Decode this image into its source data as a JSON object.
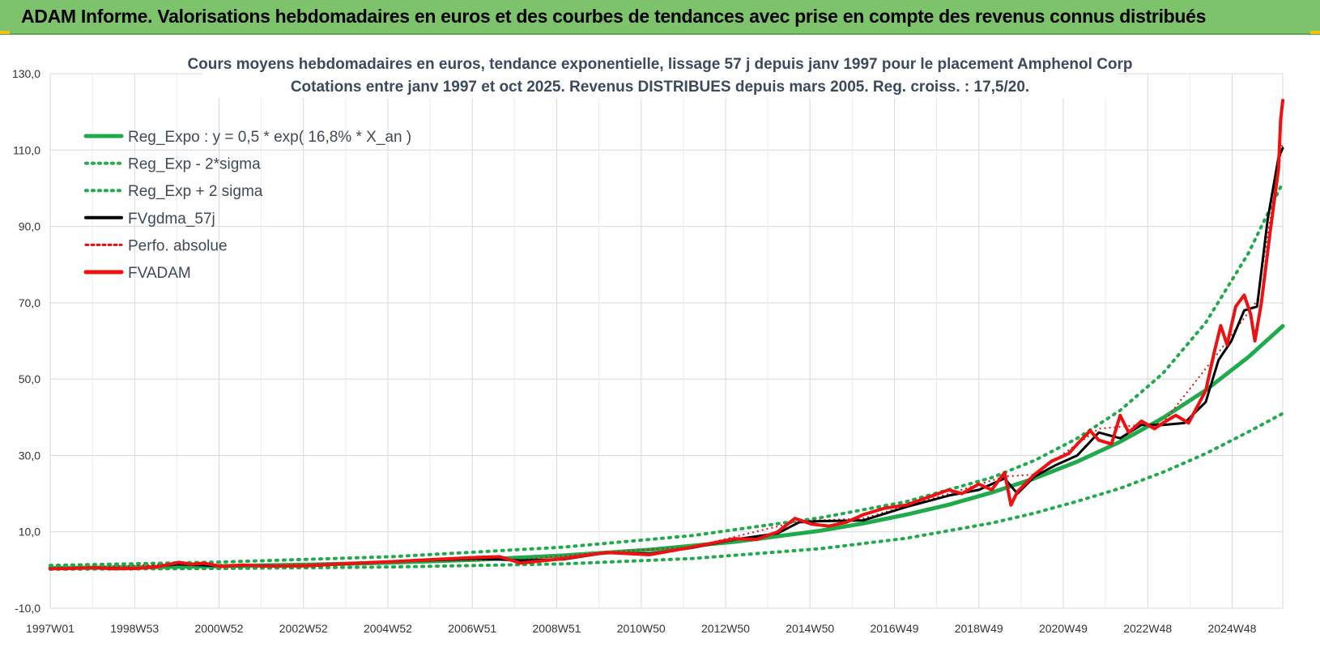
{
  "banner": {
    "title": "ADAM Informe. Valorisations hebdomadaires en euros et des courbes de tendances avec prise en compte des revenus connus distribués"
  },
  "colors": {
    "banner_bg": "#7dc36b",
    "reg_expo": "#1faa4b",
    "reg_sigma": "#1faa4b",
    "fvgdma": "#000000",
    "perfo": "#e01010",
    "fvadam": "#ee1111",
    "grid": "#d9d9d9"
  },
  "chart_data": {
    "type": "line",
    "title_line1": "Cours moyens hebdomadaires en euros, tendance exponentielle, lissage 57 j depuis janv 1997 pour le placement Amphenol Corp",
    "title_line2": "Cotations entre janv 1997 et oct 2025. Revenus DISTRIBUES depuis mars 2005. Reg. croiss. : 17,5/20.",
    "ylim": [
      -10,
      130
    ],
    "ytick_labels": [
      "130,0",
      "110,0",
      "90,0",
      "70,0",
      "50,0",
      "30,0",
      "10,0",
      "-10,0"
    ],
    "x_range": [
      1997.0,
      2025.8
    ],
    "xtick_labels": [
      "1997W01",
      "1998W53",
      "2000W52",
      "2002W52",
      "2004W52",
      "2006W51",
      "2008W51",
      "2010W50",
      "2012W50",
      "2014W50",
      "2016W49",
      "2018W49",
      "2020W49",
      "2022W48",
      "2024W48"
    ],
    "grid": true,
    "legend_position": "top-left",
    "legend": [
      {
        "label": "Reg_Expo : y = 0,5 * exp( 16,8% *  X_an )",
        "style": "solid-thick-green"
      },
      {
        "label": "Reg_Exp - 2*sigma",
        "style": "dotted-green"
      },
      {
        "label": "Reg_Exp + 2 sigma",
        "style": "dotted-green"
      },
      {
        "label": "FVgdma_57j",
        "style": "solid-black"
      },
      {
        "label": "Perfo. absolue",
        "style": "dotted-red"
      },
      {
        "label": "FVADAM",
        "style": "solid-thick-red"
      }
    ],
    "series": [
      {
        "name": "Reg_Expo : y = 0,5 * exp( 16,8% *  X_an )",
        "points": [
          [
            1997.0,
            0.5
          ],
          [
            2000.0,
            0.83
          ],
          [
            2003.0,
            1.4
          ],
          [
            2005.0,
            1.95
          ],
          [
            2007.0,
            2.7
          ],
          [
            2009.0,
            3.8
          ],
          [
            2011.0,
            5.3
          ],
          [
            2013.0,
            7.4
          ],
          [
            2015.0,
            10.3
          ],
          [
            2016.0,
            12.2
          ],
          [
            2017.0,
            14.5
          ],
          [
            2018.0,
            17.1
          ],
          [
            2019.0,
            20.3
          ],
          [
            2020.0,
            24.0
          ],
          [
            2021.0,
            28.4
          ],
          [
            2022.0,
            33.6
          ],
          [
            2023.0,
            39.8
          ],
          [
            2024.0,
            47.1
          ],
          [
            2025.0,
            55.8
          ],
          [
            2025.8,
            63.9
          ]
        ]
      },
      {
        "name": "Reg_Exp - 2*sigma",
        "points": [
          [
            1997.0,
            0.2
          ],
          [
            2001.0,
            0.4
          ],
          [
            2005.0,
            0.8
          ],
          [
            2009.0,
            1.6
          ],
          [
            2012.0,
            3.0
          ],
          [
            2015.0,
            5.6
          ],
          [
            2017.0,
            8.3
          ],
          [
            2019.0,
            12.3
          ],
          [
            2020.0,
            14.9
          ],
          [
            2021.0,
            18.0
          ],
          [
            2022.0,
            21.4
          ],
          [
            2023.0,
            25.6
          ],
          [
            2024.0,
            30.5
          ],
          [
            2025.0,
            36.2
          ],
          [
            2025.8,
            41.0
          ]
        ]
      },
      {
        "name": "Reg_Exp + 2 sigma",
        "points": [
          [
            1997.0,
            1.2
          ],
          [
            2001.0,
            2.1
          ],
          [
            2005.0,
            3.5
          ],
          [
            2009.0,
            6.0
          ],
          [
            2012.0,
            9.0
          ],
          [
            2015.0,
            13.7
          ],
          [
            2017.0,
            17.9
          ],
          [
            2019.0,
            24.2
          ],
          [
            2020.0,
            28.7
          ],
          [
            2021.0,
            34.5
          ],
          [
            2022.0,
            41.8
          ],
          [
            2023.0,
            51.5
          ],
          [
            2024.0,
            64.8
          ],
          [
            2025.0,
            83.0
          ],
          [
            2025.8,
            101.5
          ]
        ]
      },
      {
        "name": "FVgdma_57j",
        "points": [
          [
            1997.0,
            0.3
          ],
          [
            1998.0,
            0.5
          ],
          [
            1999.0,
            0.4
          ],
          [
            2000.0,
            1.5
          ],
          [
            2001.0,
            1.0
          ],
          [
            2002.0,
            1.2
          ],
          [
            2003.0,
            1.0
          ],
          [
            2004.0,
            1.6
          ],
          [
            2005.0,
            2.2
          ],
          [
            2006.0,
            2.6
          ],
          [
            2007.0,
            3.0
          ],
          [
            2008.0,
            2.5
          ],
          [
            2009.0,
            2.8
          ],
          [
            2010.0,
            4.5
          ],
          [
            2011.0,
            4.3
          ],
          [
            2012.0,
            5.8
          ],
          [
            2013.0,
            8.0
          ],
          [
            2014.0,
            9.6
          ],
          [
            2014.5,
            12.5
          ],
          [
            2015.0,
            12.8
          ],
          [
            2016.0,
            13.0
          ],
          [
            2017.0,
            16.5
          ],
          [
            2018.0,
            19.5
          ],
          [
            2018.7,
            21.0
          ],
          [
            2019.3,
            24.0
          ],
          [
            2019.6,
            20.0
          ],
          [
            2020.0,
            24.5
          ],
          [
            2020.5,
            27.5
          ],
          [
            2021.0,
            30.0
          ],
          [
            2021.5,
            36.0
          ],
          [
            2022.0,
            34.5
          ],
          [
            2022.5,
            38.0
          ],
          [
            2023.0,
            38.0
          ],
          [
            2023.5,
            38.5
          ],
          [
            2024.0,
            44.0
          ],
          [
            2024.3,
            55.0
          ],
          [
            2024.6,
            60.0
          ],
          [
            2024.9,
            68.0
          ],
          [
            2025.2,
            69.0
          ],
          [
            2025.45,
            92.0
          ],
          [
            2025.7,
            108.0
          ],
          [
            2025.8,
            110.5
          ]
        ]
      },
      {
        "name": "Perfo. absolue",
        "points": [
          [
            1997.0,
            0.3
          ],
          [
            2000.0,
            1.6
          ],
          [
            2002.0,
            1.2
          ],
          [
            2005.0,
            2.3
          ],
          [
            2008.0,
            2.7
          ],
          [
            2010.0,
            4.7
          ],
          [
            2012.0,
            6.0
          ],
          [
            2014.5,
            12.8
          ],
          [
            2016.0,
            13.5
          ],
          [
            2018.0,
            20.0
          ],
          [
            2019.3,
            24.5
          ],
          [
            2020.0,
            25.0
          ],
          [
            2021.5,
            37.0
          ],
          [
            2023.0,
            38.5
          ],
          [
            2024.3,
            57.0
          ],
          [
            2025.2,
            70.5
          ],
          [
            2025.8,
            112.0
          ]
        ]
      },
      {
        "name": "FVADAM",
        "points": [
          [
            1997.0,
            0.3
          ],
          [
            1997.5,
            0.4
          ],
          [
            1998.0,
            0.6
          ],
          [
            1998.5,
            0.3
          ],
          [
            1999.0,
            0.4
          ],
          [
            1999.5,
            0.8
          ],
          [
            2000.0,
            2.0
          ],
          [
            2000.3,
            1.5
          ],
          [
            2000.6,
            1.8
          ],
          [
            2001.0,
            0.9
          ],
          [
            2001.5,
            1.3
          ],
          [
            2002.0,
            1.0
          ],
          [
            2003.0,
            1.1
          ],
          [
            2004.0,
            1.7
          ],
          [
            2005.0,
            2.2
          ],
          [
            2006.0,
            2.8
          ],
          [
            2007.0,
            3.3
          ],
          [
            2007.5,
            3.5
          ],
          [
            2008.0,
            1.8
          ],
          [
            2008.5,
            2.4
          ],
          [
            2009.0,
            3.0
          ],
          [
            2010.0,
            4.6
          ],
          [
            2011.0,
            4.0
          ],
          [
            2011.5,
            5.0
          ],
          [
            2012.0,
            6.0
          ],
          [
            2013.0,
            8.2
          ],
          [
            2013.5,
            8.0
          ],
          [
            2014.0,
            10.0
          ],
          [
            2014.4,
            13.5
          ],
          [
            2014.8,
            12.0
          ],
          [
            2015.2,
            11.5
          ],
          [
            2015.6,
            12.5
          ],
          [
            2016.0,
            14.5
          ],
          [
            2016.5,
            16.2
          ],
          [
            2017.0,
            17.0
          ],
          [
            2017.5,
            19.0
          ],
          [
            2018.0,
            21.0
          ],
          [
            2018.3,
            20.0
          ],
          [
            2018.7,
            22.5
          ],
          [
            2019.0,
            21.0
          ],
          [
            2019.3,
            25.5
          ],
          [
            2019.45,
            17.0
          ],
          [
            2019.6,
            20.5
          ],
          [
            2020.0,
            25.0
          ],
          [
            2020.4,
            28.5
          ],
          [
            2020.8,
            30.5
          ],
          [
            2021.0,
            33.0
          ],
          [
            2021.3,
            36.5
          ],
          [
            2021.5,
            34.0
          ],
          [
            2021.8,
            33.0
          ],
          [
            2022.0,
            40.5
          ],
          [
            2022.2,
            36.0
          ],
          [
            2022.5,
            39.0
          ],
          [
            2022.8,
            37.0
          ],
          [
            2023.0,
            38.5
          ],
          [
            2023.3,
            40.5
          ],
          [
            2023.6,
            38.5
          ],
          [
            2024.0,
            47.0
          ],
          [
            2024.2,
            57.0
          ],
          [
            2024.35,
            64.0
          ],
          [
            2024.5,
            59.0
          ],
          [
            2024.7,
            69.0
          ],
          [
            2024.9,
            72.0
          ],
          [
            2025.05,
            67.0
          ],
          [
            2025.15,
            60.0
          ],
          [
            2025.3,
            70.0
          ],
          [
            2025.5,
            88.0
          ],
          [
            2025.7,
            105.0
          ],
          [
            2025.75,
            118.0
          ],
          [
            2025.8,
            123.0
          ]
        ]
      }
    ]
  }
}
